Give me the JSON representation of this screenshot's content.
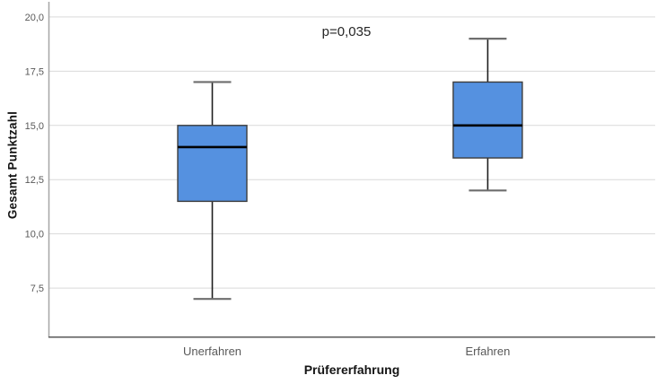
{
  "chart_data": {
    "type": "boxplot",
    "title": "",
    "xlabel": "Prüfererfahrung",
    "ylabel": "Gesamt Punktzahl",
    "annotation": "p=0,035",
    "categories": [
      "Unerfahren",
      "Erfahren"
    ],
    "ytick_values": [
      7.5,
      10.0,
      12.5,
      15.0,
      17.5,
      20.0
    ],
    "ytick_labels": [
      "7,5",
      "10,0",
      "12,5",
      "15,0",
      "17,5",
      "20,0"
    ],
    "ylim": [
      5.27,
      20.7
    ],
    "grid": true,
    "legend": "none",
    "series": [
      {
        "name": "Unerfahren",
        "whisker_low": 7.0,
        "q1": 11.5,
        "median": 14.0,
        "q3": 15.0,
        "whisker_high": 17.0
      },
      {
        "name": "Erfahren",
        "whisker_low": 12.0,
        "q1": 13.5,
        "median": 15.0,
        "q3": 17.0,
        "whisker_high": 19.0
      }
    ],
    "colors": {
      "box_fill": "#5591E0",
      "box_border": "#3D3D3D",
      "median": "#000000",
      "whisker": "#1F1F1F",
      "cap": "#6E6E6E",
      "grid": "#D9D9D9",
      "axis_left": "#A6A6A6",
      "axis_bottom": "#595959",
      "tick_text": "#595959",
      "category_text": "#595959"
    }
  }
}
